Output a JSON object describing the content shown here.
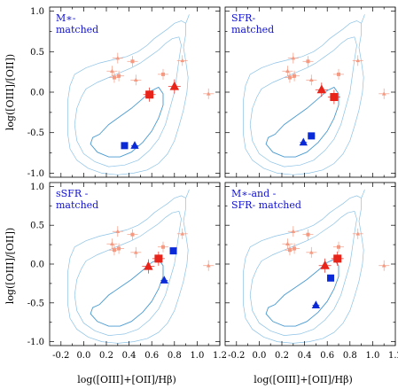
{
  "axes": {
    "xlabel": "log([OIII]+[OII]/Hβ)",
    "ylabel": "log([OIII]/[OII])",
    "xlim": [
      -0.3,
      1.2
    ],
    "ylim": [
      -1.05,
      1.05
    ],
    "xticks": [
      -0.2,
      0.0,
      0.2,
      0.4,
      0.6,
      0.8,
      1.0,
      1.2
    ],
    "xticklabels": [
      "-0.2",
      "0.0",
      "0.2",
      "0.4",
      "0.6",
      "0.8",
      "1.0",
      "1.2"
    ],
    "yticks": [
      -1.0,
      -0.5,
      0.0,
      0.5,
      1.0
    ],
    "yticklabels": [
      "-1.0",
      "-0.5",
      "0.0",
      "0.5",
      "1.0"
    ]
  },
  "colors": {
    "matched_points": "#0a2ad8",
    "stack_points": "#e8241a",
    "individual_points": "#f59a82",
    "contour_inner": "#4a9ad0",
    "contour_outer": "#8cc2e6"
  },
  "chart_data": [
    {
      "type": "scatter",
      "title_lines": [
        "M∗-",
        "matched"
      ],
      "background_points": [
        {
          "marker": "triangle",
          "x": 0.3,
          "y": 0.42
        },
        {
          "marker": "square",
          "x": 0.43,
          "y": 0.38
        },
        {
          "marker": "triangle",
          "x": 0.25,
          "y": 0.26
        },
        {
          "marker": "square",
          "x": 0.27,
          "y": 0.18
        },
        {
          "marker": "square",
          "x": 0.31,
          "y": 0.2
        },
        {
          "marker": "triangle",
          "x": 0.46,
          "y": 0.15
        },
        {
          "marker": "square",
          "x": 0.7,
          "y": 0.22
        },
        {
          "marker": "triangle",
          "x": 0.87,
          "y": 0.39
        },
        {
          "marker": "triangle",
          "x": 1.1,
          "y": -0.02
        }
      ],
      "stack_points": [
        {
          "marker": "square",
          "x": 0.58,
          "y": -0.03
        },
        {
          "marker": "triangle",
          "x": 0.8,
          "y": 0.07
        }
      ],
      "matched_points": [
        {
          "marker": "square",
          "x": 0.36,
          "y": -0.66
        },
        {
          "marker": "triangle",
          "x": 0.45,
          "y": -0.66
        }
      ]
    },
    {
      "type": "scatter",
      "title_lines": [
        "SFR-",
        "matched"
      ],
      "background_points": [
        {
          "marker": "triangle",
          "x": 0.3,
          "y": 0.42
        },
        {
          "marker": "square",
          "x": 0.43,
          "y": 0.38
        },
        {
          "marker": "triangle",
          "x": 0.25,
          "y": 0.26
        },
        {
          "marker": "square",
          "x": 0.27,
          "y": 0.18
        },
        {
          "marker": "square",
          "x": 0.31,
          "y": 0.2
        },
        {
          "marker": "triangle",
          "x": 0.46,
          "y": 0.15
        },
        {
          "marker": "square",
          "x": 0.7,
          "y": 0.22
        },
        {
          "marker": "triangle",
          "x": 0.87,
          "y": 0.39
        },
        {
          "marker": "triangle",
          "x": 1.1,
          "y": -0.02
        }
      ],
      "stack_points": [
        {
          "marker": "square",
          "x": 0.66,
          "y": -0.06
        },
        {
          "marker": "triangle",
          "x": 0.55,
          "y": 0.03
        }
      ],
      "matched_points": [
        {
          "marker": "square",
          "x": 0.46,
          "y": -0.54
        },
        {
          "marker": "triangle",
          "x": 0.39,
          "y": -0.62
        }
      ]
    },
    {
      "type": "scatter",
      "title_lines": [
        "sSFR -",
        "matched"
      ],
      "background_points": [
        {
          "marker": "triangle",
          "x": 0.3,
          "y": 0.42
        },
        {
          "marker": "square",
          "x": 0.43,
          "y": 0.38
        },
        {
          "marker": "triangle",
          "x": 0.25,
          "y": 0.26
        },
        {
          "marker": "square",
          "x": 0.27,
          "y": 0.18
        },
        {
          "marker": "square",
          "x": 0.31,
          "y": 0.2
        },
        {
          "marker": "triangle",
          "x": 0.46,
          "y": 0.15
        },
        {
          "marker": "square",
          "x": 0.7,
          "y": 0.22
        },
        {
          "marker": "triangle",
          "x": 0.87,
          "y": 0.39
        },
        {
          "marker": "triangle",
          "x": 1.1,
          "y": -0.02
        }
      ],
      "stack_points": [
        {
          "marker": "square",
          "x": 0.66,
          "y": 0.07
        },
        {
          "marker": "triangle",
          "x": 0.57,
          "y": -0.03
        }
      ],
      "matched_points": [
        {
          "marker": "square",
          "x": 0.79,
          "y": 0.17
        },
        {
          "marker": "triangle",
          "x": 0.71,
          "y": -0.21
        }
      ]
    },
    {
      "type": "scatter",
      "title_lines": [
        "M∗-and -",
        "SFR- matched"
      ],
      "background_points": [
        {
          "marker": "triangle",
          "x": 0.3,
          "y": 0.42
        },
        {
          "marker": "square",
          "x": 0.43,
          "y": 0.38
        },
        {
          "marker": "triangle",
          "x": 0.25,
          "y": 0.26
        },
        {
          "marker": "square",
          "x": 0.27,
          "y": 0.18
        },
        {
          "marker": "square",
          "x": 0.31,
          "y": 0.2
        },
        {
          "marker": "triangle",
          "x": 0.46,
          "y": 0.15
        },
        {
          "marker": "square",
          "x": 0.7,
          "y": 0.22
        },
        {
          "marker": "triangle",
          "x": 0.87,
          "y": 0.39
        },
        {
          "marker": "triangle",
          "x": 1.1,
          "y": -0.02
        }
      ],
      "stack_points": [
        {
          "marker": "square",
          "x": 0.69,
          "y": 0.07
        },
        {
          "marker": "triangle",
          "x": 0.58,
          "y": -0.02
        }
      ],
      "matched_points": [
        {
          "marker": "square",
          "x": 0.63,
          "y": -0.18
        },
        {
          "marker": "triangle",
          "x": 0.5,
          "y": -0.53
        }
      ]
    }
  ]
}
